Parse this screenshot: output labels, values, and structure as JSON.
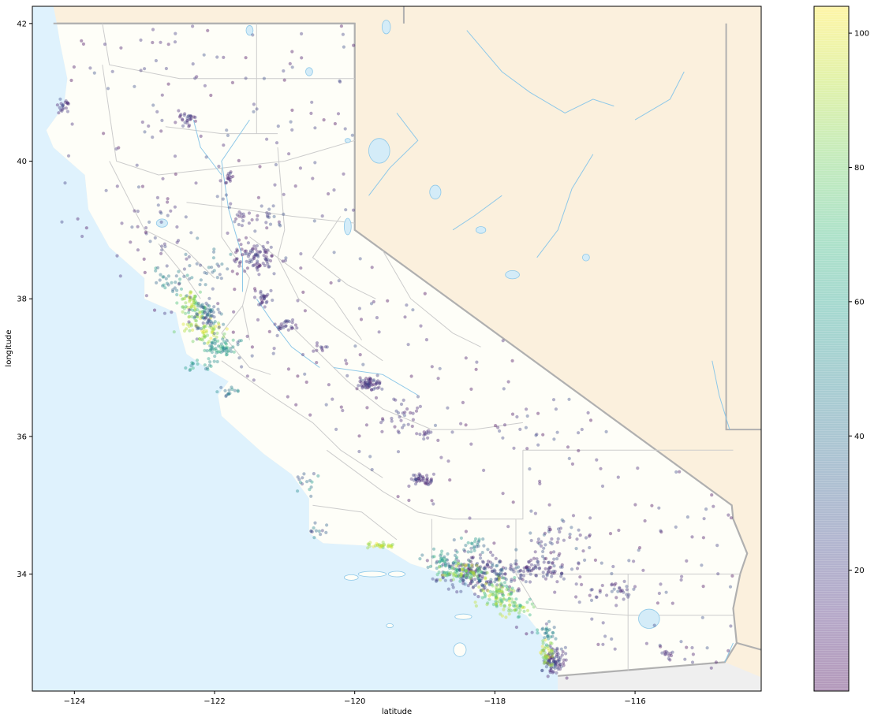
{
  "chart_data": {
    "type": "scatter",
    "title": "",
    "xlabel": "latitude",
    "ylabel": "longitude",
    "xlim": [
      -124.6,
      -114.2
    ],
    "ylim": [
      32.3,
      42.25
    ],
    "xticks": [
      -124,
      -122,
      -120,
      -118,
      -116
    ],
    "yticks": [
      34,
      36,
      38,
      40,
      42
    ],
    "grid": false,
    "legend": "none",
    "colormap": "viridis",
    "point_alpha": 0.4,
    "colorbar": {
      "range": [
        2,
        104
      ],
      "ticks": [
        20,
        40,
        60,
        80,
        100
      ]
    },
    "colors": {
      "ocean": "#dff2fd",
      "land": "#fbf0dd",
      "california": "#fefef8",
      "mexico": "#efefef",
      "water": "#d4ecf8",
      "river": "#8ec8e8",
      "state_border": "#b0b0b0",
      "county_border": "#cccccc"
    },
    "clusters": [
      {
        "x": -118.2,
        "y": 34.0,
        "sx": 0.28,
        "sy": 0.13,
        "n": 220,
        "c": [
          8,
          40
        ]
      },
      {
        "x": -118.45,
        "y": 34.02,
        "sx": 0.15,
        "sy": 0.07,
        "n": 80,
        "c": [
          60,
          100
        ]
      },
      {
        "x": -117.95,
        "y": 33.72,
        "sx": 0.14,
        "sy": 0.1,
        "n": 90,
        "c": [
          60,
          100
        ]
      },
      {
        "x": -117.35,
        "y": 34.08,
        "sx": 0.2,
        "sy": 0.08,
        "n": 70,
        "c": [
          8,
          30
        ]
      },
      {
        "x": -117.7,
        "y": 33.5,
        "sx": 0.12,
        "sy": 0.08,
        "n": 40,
        "c": [
          60,
          100
        ]
      },
      {
        "x": -118.75,
        "y": 34.2,
        "sx": 0.15,
        "sy": 0.07,
        "n": 40,
        "c": [
          40,
          70
        ]
      },
      {
        "x": -119.6,
        "y": 34.42,
        "sx": 0.12,
        "sy": 0.02,
        "n": 30,
        "c": [
          80,
          104
        ]
      },
      {
        "x": -118.35,
        "y": 34.42,
        "sx": 0.12,
        "sy": 0.06,
        "n": 25,
        "c": [
          30,
          60
        ]
      },
      {
        "x": -117.15,
        "y": 32.75,
        "sx": 0.08,
        "sy": 0.1,
        "n": 90,
        "c": [
          8,
          30
        ]
      },
      {
        "x": -117.25,
        "y": 32.85,
        "sx": 0.05,
        "sy": 0.1,
        "n": 40,
        "c": [
          80,
          104
        ]
      },
      {
        "x": -117.25,
        "y": 33.15,
        "sx": 0.06,
        "sy": 0.08,
        "n": 25,
        "c": [
          30,
          70
        ]
      },
      {
        "x": -122.3,
        "y": 37.8,
        "sx": 0.1,
        "sy": 0.12,
        "n": 50,
        "c": [
          60,
          100
        ]
      },
      {
        "x": -122.1,
        "y": 37.5,
        "sx": 0.15,
        "sy": 0.1,
        "n": 60,
        "c": [
          80,
          104
        ]
      },
      {
        "x": -121.9,
        "y": 37.3,
        "sx": 0.12,
        "sy": 0.06,
        "n": 60,
        "c": [
          40,
          70
        ]
      },
      {
        "x": -122.1,
        "y": 37.75,
        "sx": 0.1,
        "sy": 0.1,
        "n": 60,
        "c": [
          20,
          50
        ]
      },
      {
        "x": -122.6,
        "y": 38.25,
        "sx": 0.12,
        "sy": 0.12,
        "n": 30,
        "c": [
          30,
          60
        ]
      },
      {
        "x": -122.4,
        "y": 38.0,
        "sx": 0.1,
        "sy": 0.06,
        "n": 20,
        "c": [
          80,
          104
        ]
      },
      {
        "x": -122.15,
        "y": 37.05,
        "sx": 0.12,
        "sy": 0.06,
        "n": 20,
        "c": [
          40,
          70
        ]
      },
      {
        "x": -121.8,
        "y": 36.65,
        "sx": 0.08,
        "sy": 0.05,
        "n": 15,
        "c": [
          30,
          60
        ]
      },
      {
        "x": -121.4,
        "y": 38.6,
        "sx": 0.15,
        "sy": 0.1,
        "n": 80,
        "c": [
          8,
          25
        ]
      },
      {
        "x": -121.3,
        "y": 38.0,
        "sx": 0.06,
        "sy": 0.08,
        "n": 25,
        "c": [
          8,
          25
        ]
      },
      {
        "x": -121.0,
        "y": 37.65,
        "sx": 0.08,
        "sy": 0.05,
        "n": 25,
        "c": [
          8,
          25
        ]
      },
      {
        "x": -120.5,
        "y": 37.3,
        "sx": 0.06,
        "sy": 0.04,
        "n": 10,
        "c": [
          8,
          25
        ]
      },
      {
        "x": -119.8,
        "y": 36.78,
        "sx": 0.08,
        "sy": 0.05,
        "n": 60,
        "c": [
          8,
          25
        ]
      },
      {
        "x": -119.35,
        "y": 36.3,
        "sx": 0.2,
        "sy": 0.15,
        "n": 30,
        "c": [
          8,
          25
        ]
      },
      {
        "x": -119.05,
        "y": 35.38,
        "sx": 0.07,
        "sy": 0.04,
        "n": 40,
        "c": [
          8,
          25
        ]
      },
      {
        "x": -119.0,
        "y": 36.05,
        "sx": 0.05,
        "sy": 0.04,
        "n": 10,
        "c": [
          8,
          25
        ]
      },
      {
        "x": -122.4,
        "y": 40.6,
        "sx": 0.07,
        "sy": 0.06,
        "n": 25,
        "c": [
          8,
          25
        ]
      },
      {
        "x": -121.8,
        "y": 39.75,
        "sx": 0.05,
        "sy": 0.04,
        "n": 15,
        "c": [
          8,
          25
        ]
      },
      {
        "x": -121.6,
        "y": 39.15,
        "sx": 0.06,
        "sy": 0.05,
        "n": 15,
        "c": [
          8,
          25
        ]
      },
      {
        "x": -124.15,
        "y": 40.8,
        "sx": 0.04,
        "sy": 0.06,
        "n": 20,
        "c": [
          8,
          25
        ]
      },
      {
        "x": -121.2,
        "y": 39.15,
        "sx": 0.1,
        "sy": 0.1,
        "n": 15,
        "c": [
          8,
          30
        ]
      },
      {
        "x": -117.1,
        "y": 34.5,
        "sx": 0.25,
        "sy": 0.15,
        "n": 50,
        "c": [
          8,
          35
        ]
      },
      {
        "x": -116.3,
        "y": 33.75,
        "sx": 0.25,
        "sy": 0.08,
        "n": 35,
        "c": [
          8,
          30
        ]
      },
      {
        "x": -120.5,
        "y": 34.65,
        "sx": 0.07,
        "sy": 0.06,
        "n": 12,
        "c": [
          20,
          50
        ]
      },
      {
        "x": -120.7,
        "y": 35.3,
        "sx": 0.1,
        "sy": 0.1,
        "n": 15,
        "c": [
          20,
          60
        ]
      },
      {
        "x": -115.55,
        "y": 32.85,
        "sx": 0.07,
        "sy": 0.05,
        "n": 12,
        "c": [
          8,
          25
        ]
      },
      {
        "x": -122.05,
        "y": 38.45,
        "sx": 0.25,
        "sy": 0.2,
        "n": 30,
        "c": [
          20,
          50
        ]
      },
      {
        "x": -122.8,
        "y": 39.0,
        "sx": 0.3,
        "sy": 0.3,
        "n": 25,
        "c": [
          8,
          30
        ]
      }
    ]
  }
}
